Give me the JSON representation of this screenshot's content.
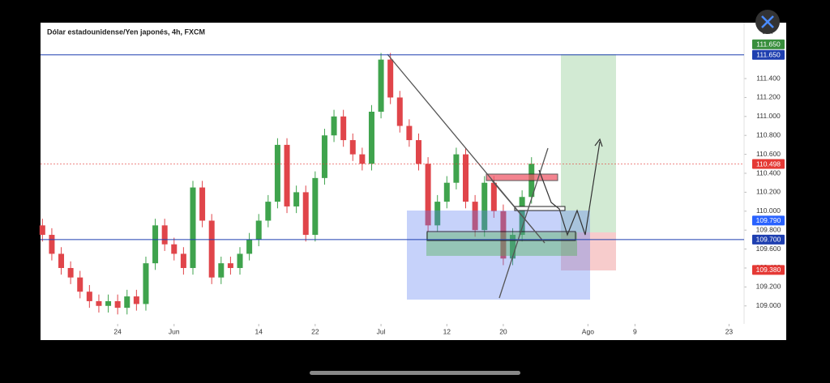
{
  "chart_data": {
    "type": "candlestick",
    "title": "Dólar estadounidense/Yen japonés, 4h, FXCM",
    "currency": "JPY",
    "up_color": "#3fa34d",
    "down_color": "#e0454a",
    "x": [
      -8,
      -7,
      -6,
      -5,
      -4,
      -3,
      -2,
      -1,
      0,
      1,
      2,
      3,
      4,
      5,
      6,
      7,
      8,
      9,
      10,
      11,
      12,
      13,
      14,
      15,
      16,
      17,
      18,
      19,
      20,
      21,
      22,
      23,
      24,
      25,
      26,
      27,
      28,
      29,
      30,
      31,
      32,
      33,
      34,
      35,
      36,
      37,
      38,
      39,
      40,
      41,
      42,
      43,
      44
    ],
    "open": [
      109.85,
      109.75,
      109.55,
      109.4,
      109.3,
      109.15,
      109.05,
      109.0,
      109.05,
      108.98,
      109.1,
      109.02,
      109.45,
      109.85,
      109.65,
      109.55,
      109.4,
      110.25,
      109.9,
      109.3,
      109.45,
      109.4,
      109.55,
      109.7,
      109.9,
      110.1,
      110.7,
      110.05,
      110.2,
      109.75,
      110.35,
      110.8,
      111.0,
      110.75,
      110.6,
      110.5,
      111.05,
      111.6,
      111.2,
      110.9,
      110.75,
      110.5,
      109.85,
      110.1,
      110.3,
      110.6,
      110.1,
      109.8,
      110.3,
      110.0,
      109.5,
      109.75,
      110.15
    ],
    "high": [
      109.92,
      109.82,
      109.62,
      109.47,
      109.37,
      109.22,
      109.12,
      109.12,
      109.12,
      109.17,
      109.17,
      109.52,
      109.92,
      109.92,
      109.72,
      109.62,
      110.32,
      110.32,
      109.97,
      109.52,
      109.52,
      109.62,
      109.77,
      109.97,
      110.17,
      110.77,
      110.77,
      110.27,
      110.27,
      110.42,
      110.87,
      111.07,
      111.07,
      110.82,
      110.67,
      111.12,
      111.67,
      111.67,
      111.27,
      110.97,
      110.82,
      110.57,
      110.17,
      110.37,
      110.67,
      110.67,
      110.17,
      110.37,
      110.37,
      110.07,
      109.82,
      110.22,
      110.57
    ],
    "low": [
      109.68,
      109.48,
      109.33,
      109.23,
      109.08,
      108.98,
      108.93,
      108.93,
      108.91,
      108.91,
      108.95,
      108.95,
      109.38,
      109.58,
      109.48,
      109.33,
      109.33,
      109.83,
      109.23,
      109.23,
      109.33,
      109.33,
      109.48,
      109.63,
      109.83,
      110.03,
      109.98,
      109.98,
      109.68,
      109.68,
      110.28,
      110.73,
      110.68,
      110.53,
      110.43,
      110.43,
      110.98,
      111.13,
      110.83,
      110.68,
      110.43,
      109.78,
      109.78,
      110.03,
      110.23,
      110.03,
      109.73,
      109.73,
      109.93,
      109.43,
      109.43,
      109.68,
      110.08
    ],
    "close": [
      109.75,
      109.55,
      109.4,
      109.3,
      109.15,
      109.05,
      109.0,
      109.05,
      108.98,
      109.1,
      109.02,
      109.45,
      109.85,
      109.65,
      109.55,
      109.4,
      110.25,
      109.9,
      109.3,
      109.45,
      109.4,
      109.55,
      109.7,
      109.9,
      110.1,
      110.7,
      110.05,
      110.2,
      109.75,
      110.35,
      110.8,
      111.0,
      110.75,
      110.6,
      110.5,
      111.05,
      111.6,
      111.2,
      110.9,
      110.75,
      110.5,
      109.85,
      110.1,
      110.3,
      110.6,
      110.1,
      109.8,
      110.3,
      110.0,
      109.5,
      109.75,
      110.15,
      110.5
    ],
    "xlim": [
      -8.2,
      66.6
    ],
    "xticks": [
      {
        "value": 0,
        "label": "24"
      },
      {
        "value": 6,
        "label": "Jun"
      },
      {
        "value": 15,
        "label": "14"
      },
      {
        "value": 21,
        "label": "22"
      },
      {
        "value": 28,
        "label": "Jul"
      },
      {
        "value": 35,
        "label": "12"
      },
      {
        "value": 41,
        "label": "20"
      },
      {
        "value": 50,
        "label": "Ago"
      },
      {
        "value": 55,
        "label": "9"
      },
      {
        "value": 65,
        "label": "23"
      }
    ],
    "ylim": [
      108.81,
      111.99
    ],
    "yticks": [
      {
        "value": 109.0,
        "label": "109.000"
      },
      {
        "value": 109.2,
        "label": "109.200"
      },
      {
        "value": 109.4,
        "label": "109.400"
      },
      {
        "value": 109.6,
        "label": "109.600"
      },
      {
        "value": 109.8,
        "label": "109.800"
      },
      {
        "value": 110.0,
        "label": "110.000"
      },
      {
        "value": 110.2,
        "label": "110.200"
      },
      {
        "value": 110.4,
        "label": "110.400"
      },
      {
        "value": 110.6,
        "label": "110.600"
      },
      {
        "value": 110.8,
        "label": "110.800"
      },
      {
        "value": 111.0,
        "label": "111.000"
      },
      {
        "value": 111.2,
        "label": "111.200"
      },
      {
        "value": 111.4,
        "label": "111.400"
      }
    ],
    "price_labels": [
      {
        "value": 111.65,
        "label": "111.650",
        "color": "#388e3c"
      },
      {
        "value": 111.65,
        "label": "111.650",
        "color": "#1e3fb0",
        "line": "solid"
      },
      {
        "value": 110.498,
        "label": "110.498",
        "color": "#e53935",
        "line": "dotted"
      },
      {
        "value": 109.79,
        "label": "109.790",
        "color": "#2962ff"
      },
      {
        "value": 109.7,
        "label": "109.700",
        "color": "#1e3fb0",
        "line": "solid"
      },
      {
        "value": 109.38,
        "label": "109.380",
        "color": "#e53935"
      }
    ]
  }
}
